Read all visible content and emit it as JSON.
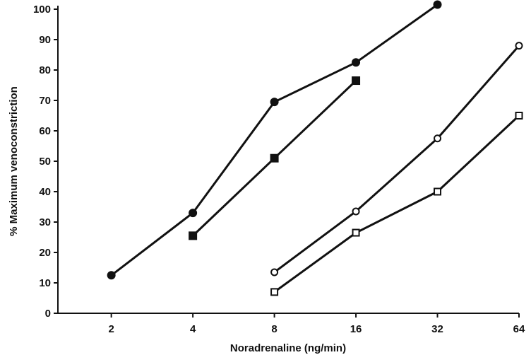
{
  "chart_data": {
    "type": "line",
    "xlabel": "Noradrenaline (ng/min)",
    "ylabel": "% Maximum venoconstriction",
    "x_scale": "log2",
    "xlim": [
      1.27,
      64
    ],
    "ylim": [
      0,
      100
    ],
    "x_ticks": [
      2,
      4,
      8,
      16,
      32,
      64
    ],
    "y_ticks": [
      0,
      10,
      20,
      30,
      40,
      50,
      60,
      70,
      80,
      90,
      100
    ],
    "x_tick_labels": [
      "2",
      "4",
      "8",
      "16",
      "32",
      "64"
    ],
    "y_tick_labels": [
      "0",
      "10",
      "20",
      "30",
      "40",
      "50",
      "60",
      "70",
      "80",
      "90",
      "100"
    ],
    "grid": false,
    "legend": "none",
    "series": [
      {
        "marker": "filled-circle",
        "x": [
          2,
          4,
          8,
          16,
          32
        ],
        "y": [
          12.5,
          33,
          69.5,
          82.5,
          101.5
        ]
      },
      {
        "marker": "filled-square",
        "x": [
          4,
          8,
          16
        ],
        "y": [
          25.5,
          51,
          76.5
        ]
      },
      {
        "marker": "open-circle",
        "x": [
          8,
          16,
          32,
          64
        ],
        "y": [
          13.5,
          33.5,
          57.5,
          88
        ]
      },
      {
        "marker": "open-square",
        "x": [
          8,
          16,
          32,
          64
        ],
        "y": [
          7,
          26.5,
          40,
          65
        ]
      }
    ],
    "colors": {
      "ink": "#111111",
      "background": "#ffffff"
    }
  }
}
